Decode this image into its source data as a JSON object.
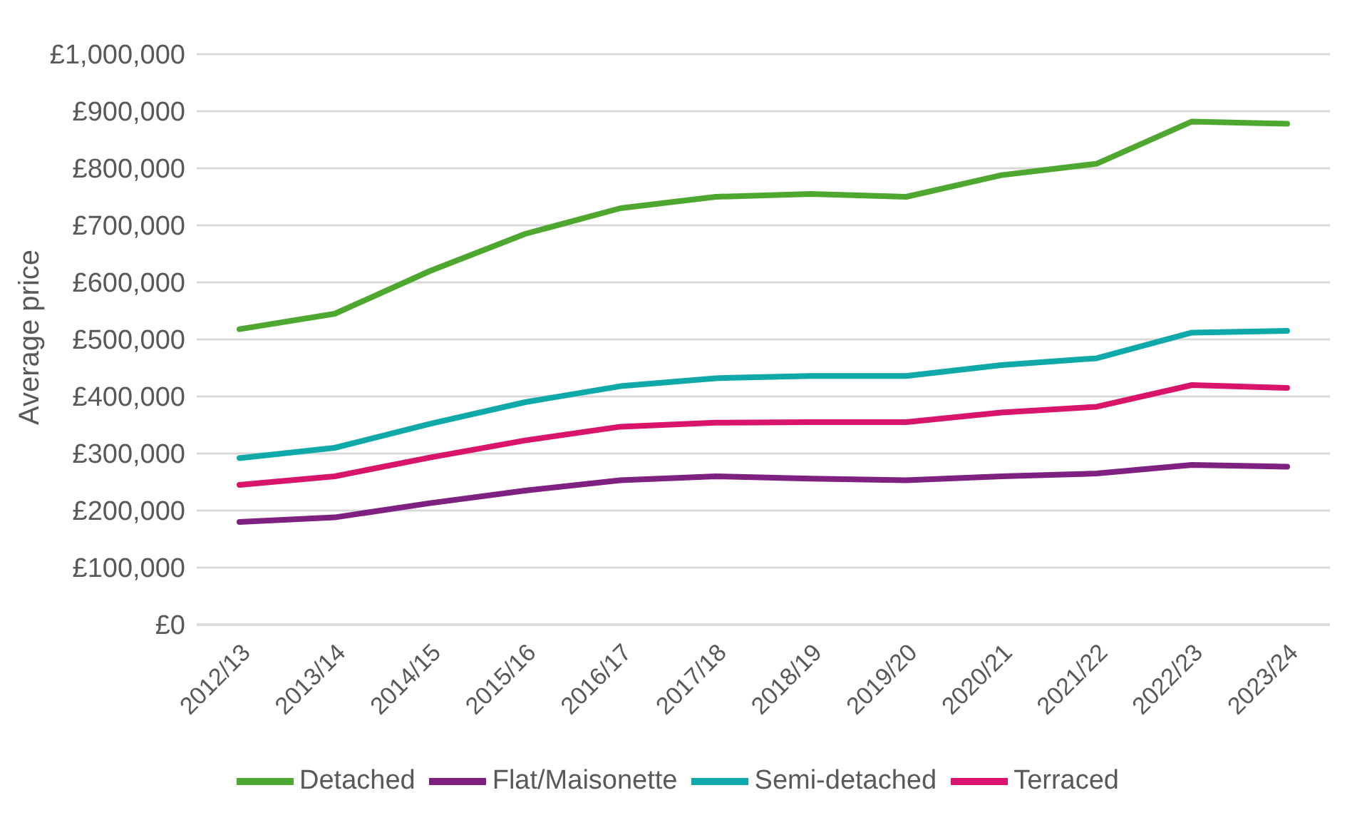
{
  "chart_data": {
    "type": "line",
    "ylabel": "Average price",
    "categories": [
      "2012/13",
      "2013/14",
      "2014/15",
      "2015/16",
      "2016/17",
      "2017/18",
      "2018/19",
      "2019/20",
      "2020/21",
      "2021/22",
      "2022/23",
      "2023/24"
    ],
    "series": [
      {
        "name": "Detached",
        "color": "#4ea72e",
        "values": [
          518000,
          545000,
          620000,
          685000,
          730000,
          750000,
          755000,
          750000,
          788000,
          808000,
          882000,
          878000
        ]
      },
      {
        "name": "Semi-detached",
        "color": "#0fa9a9",
        "values": [
          292000,
          310000,
          352000,
          390000,
          418000,
          432000,
          436000,
          436000,
          455000,
          467000,
          512000,
          515000
        ]
      },
      {
        "name": "Terraced",
        "color": "#d9156b",
        "values": [
          245000,
          260000,
          293000,
          323000,
          347000,
          354000,
          355000,
          355000,
          372000,
          382000,
          420000,
          415000
        ]
      },
      {
        "name": "Flat/Maisonette",
        "color": "#7e2180",
        "values": [
          180000,
          188000,
          213000,
          235000,
          253000,
          260000,
          256000,
          253000,
          260000,
          265000,
          280000,
          277000
        ]
      }
    ],
    "ylim": [
      0,
      1000000
    ],
    "yticks": [
      {
        "value": 0,
        "label": "£0"
      },
      {
        "value": 100000,
        "label": "£100,000"
      },
      {
        "value": 200000,
        "label": "£200,000"
      },
      {
        "value": 300000,
        "label": "£300,000"
      },
      {
        "value": 400000,
        "label": "£400,000"
      },
      {
        "value": 500000,
        "label": "£500,000"
      },
      {
        "value": 600000,
        "label": "£600,000"
      },
      {
        "value": 700000,
        "label": "£700,000"
      },
      {
        "value": 800000,
        "label": "£800,000"
      },
      {
        "value": 900000,
        "label": "£900,000"
      },
      {
        "value": 1000000,
        "label": "£1,000,000"
      }
    ],
    "grid": "y",
    "legend": "bottom",
    "marker": "none",
    "line_style": "solid"
  }
}
